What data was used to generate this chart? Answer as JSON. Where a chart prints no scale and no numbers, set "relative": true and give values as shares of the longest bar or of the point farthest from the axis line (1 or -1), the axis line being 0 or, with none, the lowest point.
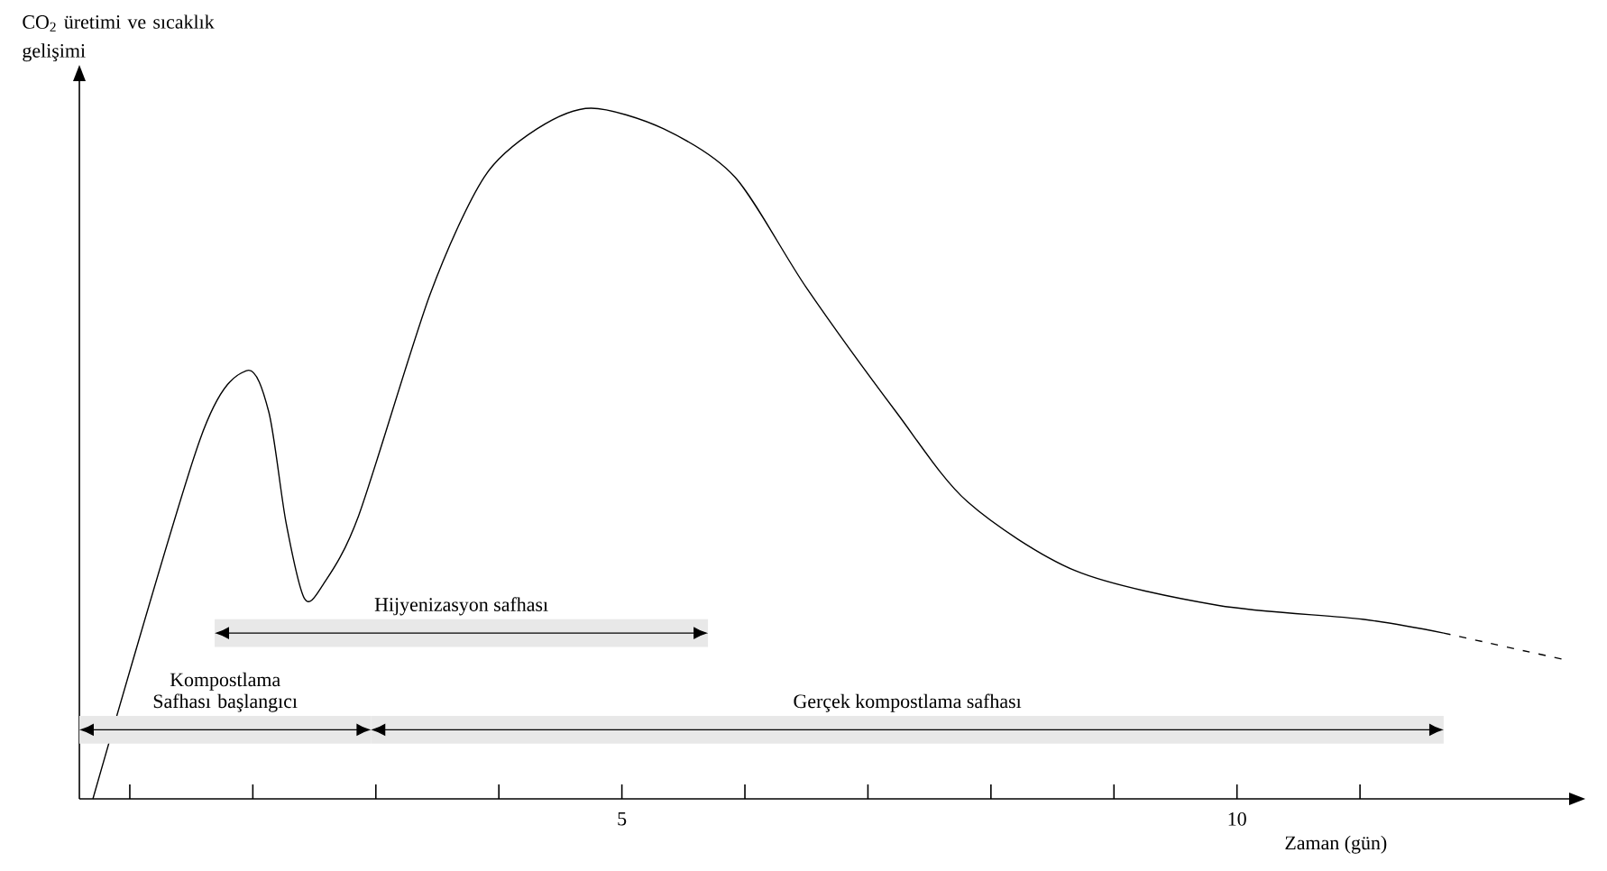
{
  "chart_data": {
    "type": "line",
    "relative": true,
    "ylabel": "CO$_{2}$ üretimi ve sıcaklık gelişimi",
    "xlabel": "Zaman (gün)",
    "xlim": [
      0.59,
      12.7
    ],
    "xticks": [
      {
        "value": 1,
        "label": null
      },
      {
        "value": 2,
        "label": null
      },
      {
        "value": 3,
        "label": null
      },
      {
        "value": 4,
        "label": null
      },
      5,
      {
        "value": 6,
        "label": null
      },
      {
        "value": 7,
        "label": null
      },
      {
        "value": 8,
        "label": null
      },
      {
        "value": 9,
        "label": null
      },
      10,
      {
        "value": 11,
        "label": null
      }
    ],
    "series": [
      {
        "color": "#000000",
        "line_style": "solid",
        "x": [
          0.7,
          1.57,
          1.95,
          2.13,
          2.27,
          2.42,
          2.57,
          2.86,
          3.44,
          3.88,
          4.31,
          4.75,
          5.34,
          5.92,
          6.5,
          7.23,
          7.81,
          8.69,
          9.85,
          11.02,
          11.68
        ],
        "values": [
          0,
          0.52,
          0.62,
          0.56,
          0.4,
          0.29,
          0.31,
          0.41,
          0.73,
          0.9,
          0.97,
          1.0,
          0.97,
          0.9,
          0.74,
          0.56,
          0.43,
          0.33,
          0.28,
          0.26,
          0.24
        ]
      },
      {
        "color": "#000000",
        "line_style": "dashed",
        "x": [
          11.68,
          12.7
        ],
        "values": [
          0.24,
          0.2
        ]
      }
    ],
    "bands": [
      {
        "axis": "x",
        "from": 0.59,
        "to": 2.96,
        "label": "Kompostlama Safhası başlangıcı"
      },
      {
        "axis": "x",
        "from": 2.96,
        "to": 11.68,
        "label": "Gerçek kompostlama safhası"
      },
      {
        "axis": "x",
        "from": 1.69,
        "to": 5.7,
        "label": "Hijyenizasyon safhası"
      }
    ]
  }
}
